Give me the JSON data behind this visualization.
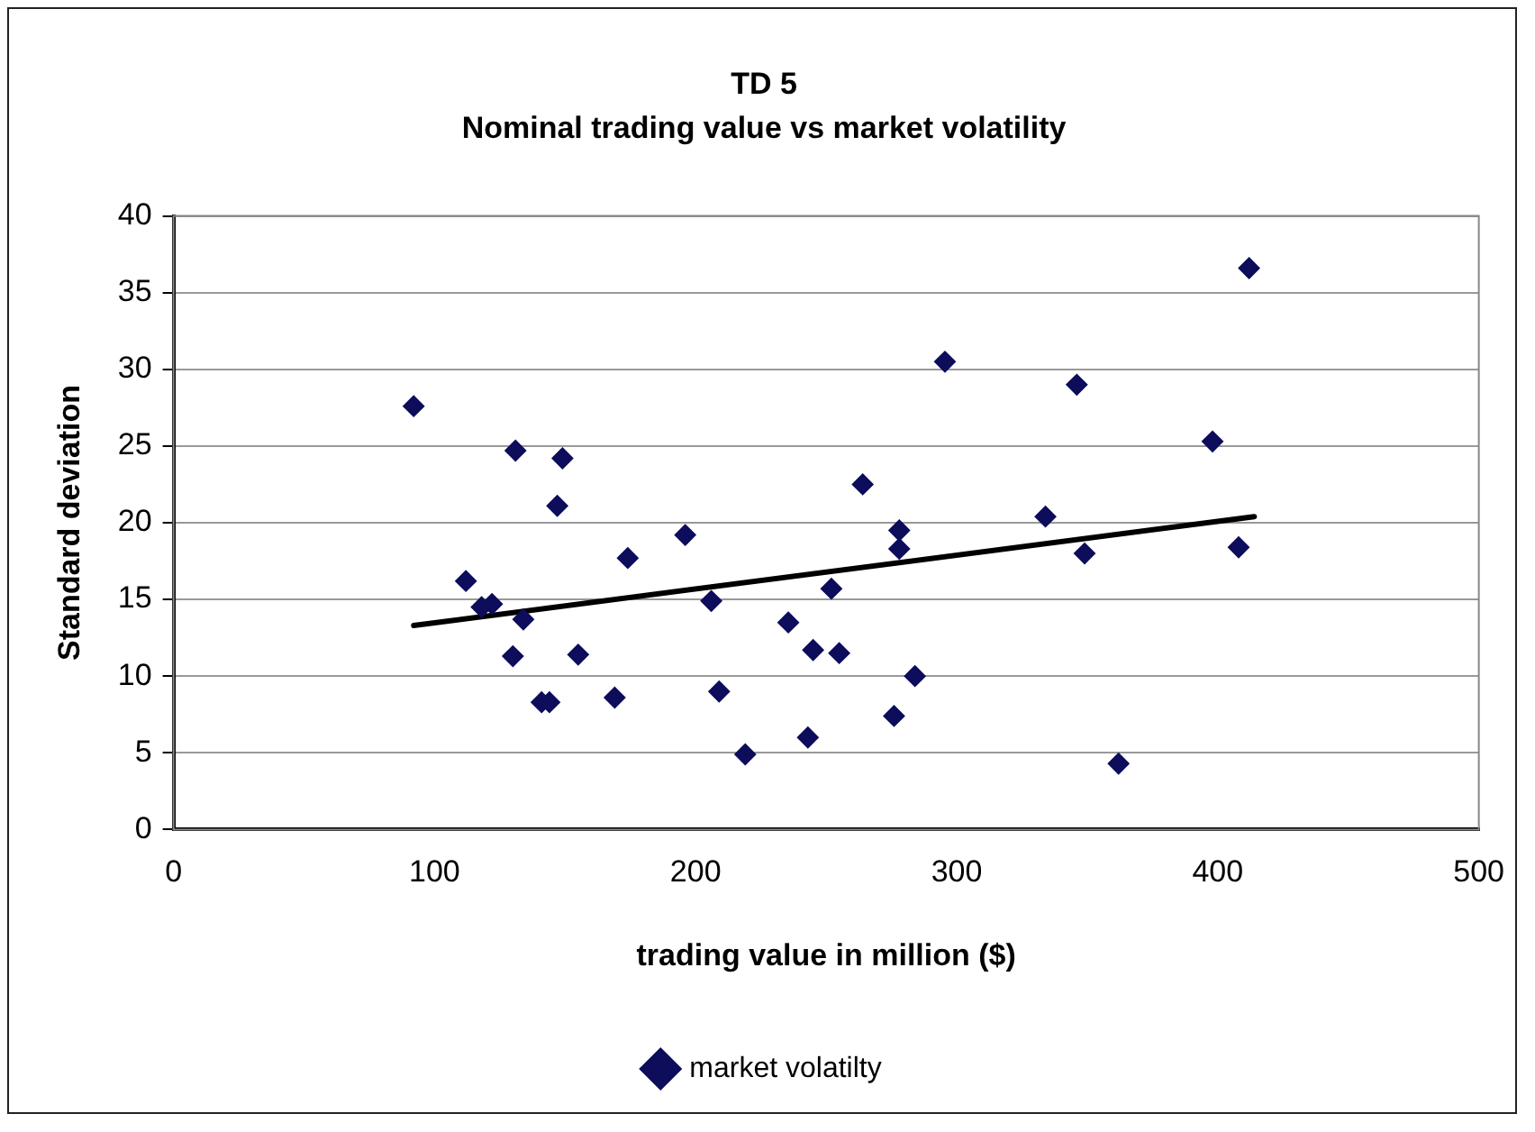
{
  "chart_data": {
    "type": "scatter",
    "title": "TD 5",
    "subtitle": "Nominal trading value vs market volatility",
    "xlabel": "trading value in million ($)",
    "ylabel": "Standard deviation",
    "xlim": [
      0,
      500
    ],
    "xticks": [
      0,
      100,
      200,
      300,
      400,
      500
    ],
    "ylim": [
      0,
      40
    ],
    "yticks": [
      0,
      5,
      10,
      15,
      20,
      25,
      30,
      35,
      40
    ],
    "grid": "y",
    "legend": "bottom",
    "marker": "diamond",
    "series": [
      {
        "name": "market volatilty",
        "color": "#0d0d5c",
        "x": [
          92,
          112,
          118,
          122,
          131,
          130,
          134,
          141,
          144,
          149,
          147,
          155,
          169,
          174,
          196,
          206,
          209,
          219,
          235.5,
          245,
          243,
          252,
          255,
          264,
          278,
          278,
          276,
          284,
          295.5,
          334,
          346,
          349,
          362,
          398,
          408,
          412
        ],
        "values": [
          27.6,
          16.2,
          14.5,
          14.7,
          24.7,
          11.3,
          13.7,
          8.3,
          8.3,
          24.2,
          21.1,
          11.4,
          8.6,
          17.7,
          19.2,
          14.9,
          9,
          4.9,
          13.5,
          11.7,
          6,
          15.7,
          11.5,
          22.5,
          19.5,
          18.3,
          7.4,
          10,
          30.5,
          20.4,
          29,
          18,
          4.3,
          25.3,
          18.4,
          36.6
        ]
      },
      {
        "type": "line",
        "color": "#000000",
        "marker": "none",
        "x": [
          92,
          414
        ],
        "values": [
          13.3,
          20.4
        ]
      }
    ]
  }
}
